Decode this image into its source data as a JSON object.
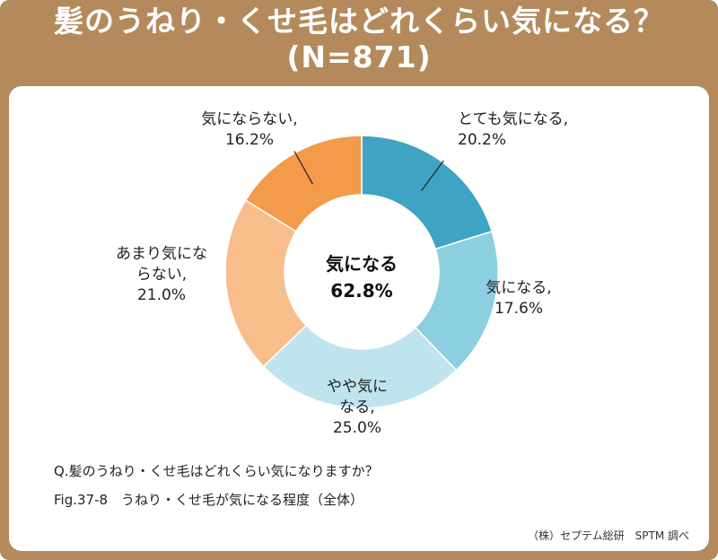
{
  "title": {
    "line1": "髪のうねり・くせ毛はどれくらい気になる？",
    "line2": "(N=871)"
  },
  "chart_data": {
    "type": "pie",
    "donut": true,
    "center_label": {
      "line1": "気になる",
      "line2": "62.8%"
    },
    "slices": [
      {
        "label_lines": [
          "とても気になる,",
          "20.2%"
        ],
        "value": 20.2,
        "color": "#3fa3c3"
      },
      {
        "label_lines": [
          "気になる,",
          "17.6%"
        ],
        "value": 17.6,
        "color": "#8ccfe0"
      },
      {
        "label_lines": [
          "やや気に",
          "なる,",
          "25.0%"
        ],
        "value": 25.0,
        "color": "#bfe4ee"
      },
      {
        "label_lines": [
          "あまり気にな",
          "らない,",
          "21.0%"
        ],
        "value": 21.0,
        "color": "#f7be8c"
      },
      {
        "label_lines": [
          "気にならない,",
          "16.2%"
        ],
        "value": 16.2,
        "color": "#f39a4b"
      }
    ]
  },
  "notes": {
    "question": "Q.髪のうねり・くせ毛はどれくらい気になりますか？",
    "figure": "Fig.37-8　うねり・くせ毛が気になる程度（全体）",
    "credit": "（株）セプテム総研　SPTM 調べ"
  },
  "colors": {
    "frame": "#b48a5c",
    "panel": "#ffffff"
  }
}
